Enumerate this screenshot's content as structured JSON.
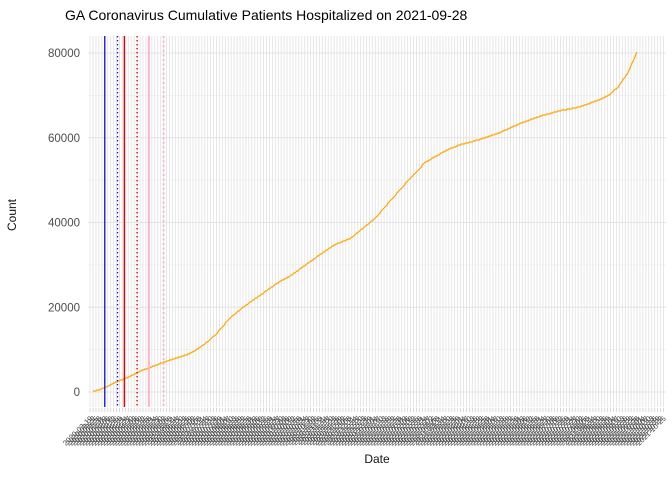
{
  "chart_data": {
    "type": "line",
    "title": "GA Coronavirus Cumulative Patients Hospitalized on 2021-09-28",
    "xlabel": "Date",
    "ylabel": "Count",
    "x_data_range": [
      "2020-03-22",
      "2021-09-28"
    ],
    "x_axis_start": "2020-03-19",
    "x_tick_every_days": 3,
    "ylim": [
      0,
      80000
    ],
    "yticks": [
      0,
      20000,
      40000,
      60000,
      80000
    ],
    "ytick_labels": [
      "0",
      "20000",
      "40000",
      "60000",
      "80000"
    ],
    "grid": true,
    "legend_position": "none",
    "series": [
      {
        "name": "cumulative-patients-hospitalized",
        "color": "#FFA500",
        "points": [
          [
            "2020-03-22",
            150
          ],
          [
            "2020-03-30",
            600
          ],
          [
            "2020-04-12",
            2100
          ],
          [
            "2020-04-25",
            3300
          ],
          [
            "2020-05-10",
            5000
          ],
          [
            "2020-05-25",
            6300
          ],
          [
            "2020-06-09",
            7600
          ],
          [
            "2020-06-25",
            8700
          ],
          [
            "2020-07-05",
            9900
          ],
          [
            "2020-07-15",
            11500
          ],
          [
            "2020-07-25",
            13500
          ],
          [
            "2020-08-09",
            17500
          ],
          [
            "2020-08-22",
            20000
          ],
          [
            "2020-09-09",
            22900
          ],
          [
            "2020-09-26",
            25700
          ],
          [
            "2020-10-10",
            27500
          ],
          [
            "2020-10-25",
            30000
          ],
          [
            "2020-11-09",
            32500
          ],
          [
            "2020-11-24",
            34800
          ],
          [
            "2020-12-10",
            36300
          ],
          [
            "2020-12-20",
            38200
          ],
          [
            "2021-01-04",
            41000
          ],
          [
            "2021-01-20",
            45300
          ],
          [
            "2021-02-07",
            50000
          ],
          [
            "2021-02-24",
            54200
          ],
          [
            "2021-03-18",
            57100
          ],
          [
            "2021-03-31",
            58300
          ],
          [
            "2021-04-21",
            59600
          ],
          [
            "2021-05-11",
            61200
          ],
          [
            "2021-05-31",
            63300
          ],
          [
            "2021-06-20",
            65000
          ],
          [
            "2021-07-10",
            66300
          ],
          [
            "2021-07-30",
            67200
          ],
          [
            "2021-08-19",
            68800
          ],
          [
            "2021-08-30",
            70000
          ],
          [
            "2021-09-09",
            72000
          ],
          [
            "2021-09-19",
            75500
          ],
          [
            "2021-09-28",
            80200
          ]
        ]
      }
    ],
    "vlines": [
      {
        "date": "2020-04-03",
        "color": "#1A1AE6",
        "style": "solid",
        "width": 1.4
      },
      {
        "date": "2020-04-16",
        "color": "#1A1AE6",
        "style": "dotted",
        "width": 1.4
      },
      {
        "date": "2020-04-23",
        "color": "#E60000",
        "style": "solid",
        "width": 1.4
      },
      {
        "date": "2020-05-06",
        "color": "#E60000",
        "style": "dotted",
        "width": 1.4
      },
      {
        "date": "2020-05-18",
        "color": "#FFB3C6",
        "style": "solid",
        "width": 2.0
      },
      {
        "date": "2020-06-02",
        "color": "#FFB3C6",
        "style": "dotted",
        "width": 2.0
      }
    ]
  },
  "colors": {
    "line": "#FFA500",
    "grid_major": "#E4E4E4",
    "grid_minor": "#F0F0F0",
    "tick_mark": "#D4D4D4",
    "axis_text": "#4D4D4D",
    "title_text": "#000000"
  }
}
